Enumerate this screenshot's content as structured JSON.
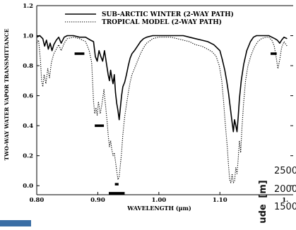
{
  "chart_data": {
    "type": "line",
    "title": "",
    "xlabel": "WAVELENGTH (μm)",
    "ylabel": "TWO-WAY WATER VAPOR TRANSMITTANCE",
    "xlim": [
      0.8,
      1.22
    ],
    "ylim": [
      -0.06,
      1.2
    ],
    "x_ticks": [
      0.8,
      0.9,
      1.0,
      1.1
    ],
    "x_tick_labels": [
      "0.80",
      "0.90",
      "1.00",
      "1.10"
    ],
    "x_tick_cut_label": "1.",
    "y_ticks": [
      0.0,
      0.2,
      0.4,
      0.6,
      0.8,
      1.0,
      1.2
    ],
    "y_tick_labels": [
      "0.0",
      "0.2",
      "0.4",
      "0.6",
      "0.8",
      "1.0",
      "1.2"
    ],
    "grid": false,
    "legend_position": "top-center",
    "series": [
      {
        "name": "SUB-ARCTIC WINTER (2-WAY PATH)",
        "style": "solid",
        "color": "#000000",
        "points": [
          [
            0.8,
            0.99
          ],
          [
            0.805,
            1.0
          ],
          [
            0.81,
            0.98
          ],
          [
            0.813,
            0.93
          ],
          [
            0.816,
            0.97
          ],
          [
            0.819,
            0.91
          ],
          [
            0.822,
            0.95
          ],
          [
            0.825,
            0.9
          ],
          [
            0.828,
            0.94
          ],
          [
            0.832,
            0.97
          ],
          [
            0.836,
            0.99
          ],
          [
            0.84,
            0.95
          ],
          [
            0.845,
            0.99
          ],
          [
            0.85,
            1.0
          ],
          [
            0.86,
            1.0
          ],
          [
            0.87,
            0.99
          ],
          [
            0.88,
            0.99
          ],
          [
            0.888,
            0.97
          ],
          [
            0.893,
            0.96
          ],
          [
            0.896,
            0.86
          ],
          [
            0.899,
            0.83
          ],
          [
            0.902,
            0.9
          ],
          [
            0.905,
            0.86
          ],
          [
            0.908,
            0.83
          ],
          [
            0.911,
            0.9
          ],
          [
            0.914,
            0.82
          ],
          [
            0.917,
            0.74
          ],
          [
            0.919,
            0.7
          ],
          [
            0.921,
            0.77
          ],
          [
            0.923,
            0.72
          ],
          [
            0.925,
            0.68
          ],
          [
            0.927,
            0.74
          ],
          [
            0.929,
            0.62
          ],
          [
            0.931,
            0.55
          ],
          [
            0.933,
            0.5
          ],
          [
            0.935,
            0.44
          ],
          [
            0.937,
            0.52
          ],
          [
            0.939,
            0.6
          ],
          [
            0.941,
            0.66
          ],
          [
            0.944,
            0.69
          ],
          [
            0.947,
            0.74
          ],
          [
            0.95,
            0.8
          ],
          [
            0.953,
            0.85
          ],
          [
            0.956,
            0.88
          ],
          [
            0.96,
            0.9
          ],
          [
            0.965,
            0.93
          ],
          [
            0.97,
            0.96
          ],
          [
            0.975,
            0.98
          ],
          [
            0.98,
            0.99
          ],
          [
            0.99,
            1.0
          ],
          [
            1.0,
            1.0
          ],
          [
            1.01,
            1.0
          ],
          [
            1.02,
            1.0
          ],
          [
            1.03,
            1.0
          ],
          [
            1.04,
            1.0
          ],
          [
            1.05,
            0.99
          ],
          [
            1.06,
            0.98
          ],
          [
            1.07,
            0.97
          ],
          [
            1.08,
            0.96
          ],
          [
            1.09,
            0.94
          ],
          [
            1.095,
            0.92
          ],
          [
            1.1,
            0.9
          ],
          [
            1.104,
            0.84
          ],
          [
            1.108,
            0.77
          ],
          [
            1.111,
            0.7
          ],
          [
            1.114,
            0.62
          ],
          [
            1.117,
            0.52
          ],
          [
            1.12,
            0.42
          ],
          [
            1.122,
            0.36
          ],
          [
            1.124,
            0.44
          ],
          [
            1.126,
            0.4
          ],
          [
            1.128,
            0.36
          ],
          [
            1.13,
            0.46
          ],
          [
            1.132,
            0.58
          ],
          [
            1.135,
            0.7
          ],
          [
            1.139,
            0.81
          ],
          [
            1.144,
            0.9
          ],
          [
            1.15,
            0.96
          ],
          [
            1.155,
            0.99
          ],
          [
            1.16,
            1.0
          ],
          [
            1.17,
            1.0
          ],
          [
            1.18,
            1.0
          ],
          [
            1.185,
            0.99
          ],
          [
            1.19,
            0.98
          ],
          [
            1.194,
            0.97
          ],
          [
            1.198,
            0.95
          ],
          [
            1.201,
            0.97
          ],
          [
            1.205,
            0.99
          ],
          [
            1.21,
            0.98
          ]
        ]
      },
      {
        "name": "TROPICAL MODEL (2-WAY PATH)",
        "style": "dotted",
        "color": "#000000",
        "points": [
          [
            0.8,
            0.95
          ],
          [
            0.803,
            0.97
          ],
          [
            0.806,
            0.84
          ],
          [
            0.808,
            0.7
          ],
          [
            0.81,
            0.66
          ],
          [
            0.812,
            0.74
          ],
          [
            0.815,
            0.68
          ],
          [
            0.818,
            0.78
          ],
          [
            0.821,
            0.72
          ],
          [
            0.824,
            0.82
          ],
          [
            0.828,
            0.88
          ],
          [
            0.832,
            0.91
          ],
          [
            0.836,
            0.94
          ],
          [
            0.84,
            0.9
          ],
          [
            0.845,
            0.95
          ],
          [
            0.85,
            0.98
          ],
          [
            0.86,
            0.99
          ],
          [
            0.87,
            0.98
          ],
          [
            0.88,
            0.96
          ],
          [
            0.886,
            0.9
          ],
          [
            0.89,
            0.82
          ],
          [
            0.893,
            0.56
          ],
          [
            0.895,
            0.48
          ],
          [
            0.897,
            0.52
          ],
          [
            0.899,
            0.47
          ],
          [
            0.901,
            0.56
          ],
          [
            0.904,
            0.48
          ],
          [
            0.907,
            0.55
          ],
          [
            0.91,
            0.64
          ],
          [
            0.913,
            0.52
          ],
          [
            0.915,
            0.44
          ],
          [
            0.917,
            0.34
          ],
          [
            0.919,
            0.26
          ],
          [
            0.921,
            0.3
          ],
          [
            0.923,
            0.24
          ],
          [
            0.925,
            0.2
          ],
          [
            0.927,
            0.22
          ],
          [
            0.929,
            0.16
          ],
          [
            0.931,
            0.1
          ],
          [
            0.933,
            0.04
          ],
          [
            0.935,
            0.06
          ],
          [
            0.937,
            0.14
          ],
          [
            0.939,
            0.22
          ],
          [
            0.941,
            0.34
          ],
          [
            0.944,
            0.46
          ],
          [
            0.947,
            0.54
          ],
          [
            0.95,
            0.62
          ],
          [
            0.953,
            0.69
          ],
          [
            0.956,
            0.74
          ],
          [
            0.96,
            0.78
          ],
          [
            0.965,
            0.83
          ],
          [
            0.97,
            0.88
          ],
          [
            0.975,
            0.92
          ],
          [
            0.98,
            0.95
          ],
          [
            0.99,
            0.98
          ],
          [
            1.0,
            0.99
          ],
          [
            1.01,
            0.99
          ],
          [
            1.02,
            0.99
          ],
          [
            1.03,
            0.98
          ],
          [
            1.04,
            0.97
          ],
          [
            1.05,
            0.96
          ],
          [
            1.06,
            0.94
          ],
          [
            1.07,
            0.93
          ],
          [
            1.08,
            0.91
          ],
          [
            1.088,
            0.89
          ],
          [
            1.094,
            0.86
          ],
          [
            1.099,
            0.8
          ],
          [
            1.103,
            0.7
          ],
          [
            1.106,
            0.56
          ],
          [
            1.109,
            0.4
          ],
          [
            1.112,
            0.26
          ],
          [
            1.114,
            0.14
          ],
          [
            1.116,
            0.04
          ],
          [
            1.118,
            0.02
          ],
          [
            1.12,
            0.08
          ],
          [
            1.122,
            0.02
          ],
          [
            1.124,
            0.03
          ],
          [
            1.126,
            0.12
          ],
          [
            1.128,
            0.08
          ],
          [
            1.13,
            0.18
          ],
          [
            1.132,
            0.3
          ],
          [
            1.134,
            0.22
          ],
          [
            1.136,
            0.38
          ],
          [
            1.139,
            0.56
          ],
          [
            1.142,
            0.7
          ],
          [
            1.146,
            0.8
          ],
          [
            1.151,
            0.87
          ],
          [
            1.156,
            0.92
          ],
          [
            1.162,
            0.96
          ],
          [
            1.168,
            0.98
          ],
          [
            1.175,
            0.99
          ],
          [
            1.18,
            0.99
          ],
          [
            1.185,
            0.97
          ],
          [
            1.189,
            0.93
          ],
          [
            1.192,
            0.86
          ],
          [
            1.195,
            0.78
          ],
          [
            1.198,
            0.84
          ],
          [
            1.201,
            0.92
          ],
          [
            1.205,
            0.96
          ],
          [
            1.21,
            0.93
          ]
        ]
      }
    ],
    "bands": [
      {
        "x": [
          0.862,
          0.878
        ],
        "y": 0.88
      },
      {
        "x": [
          0.895,
          0.91
        ],
        "y": 0.4
      },
      {
        "x": [
          0.918,
          0.944
        ],
        "y": -0.05
      },
      {
        "x": [
          0.928,
          0.934
        ],
        "y": 0.01
      },
      {
        "x": [
          1.183,
          1.193
        ],
        "y": 0.88
      }
    ]
  },
  "overlay": {
    "tick_numbers": [
      "2500",
      "2000",
      "1500"
    ],
    "axis_fragment": "ude",
    "axis_unit": "[m]"
  },
  "colors": {
    "ink": "#000000",
    "overlay_text": "#111111",
    "accent_bar": "#3a6ea5"
  }
}
